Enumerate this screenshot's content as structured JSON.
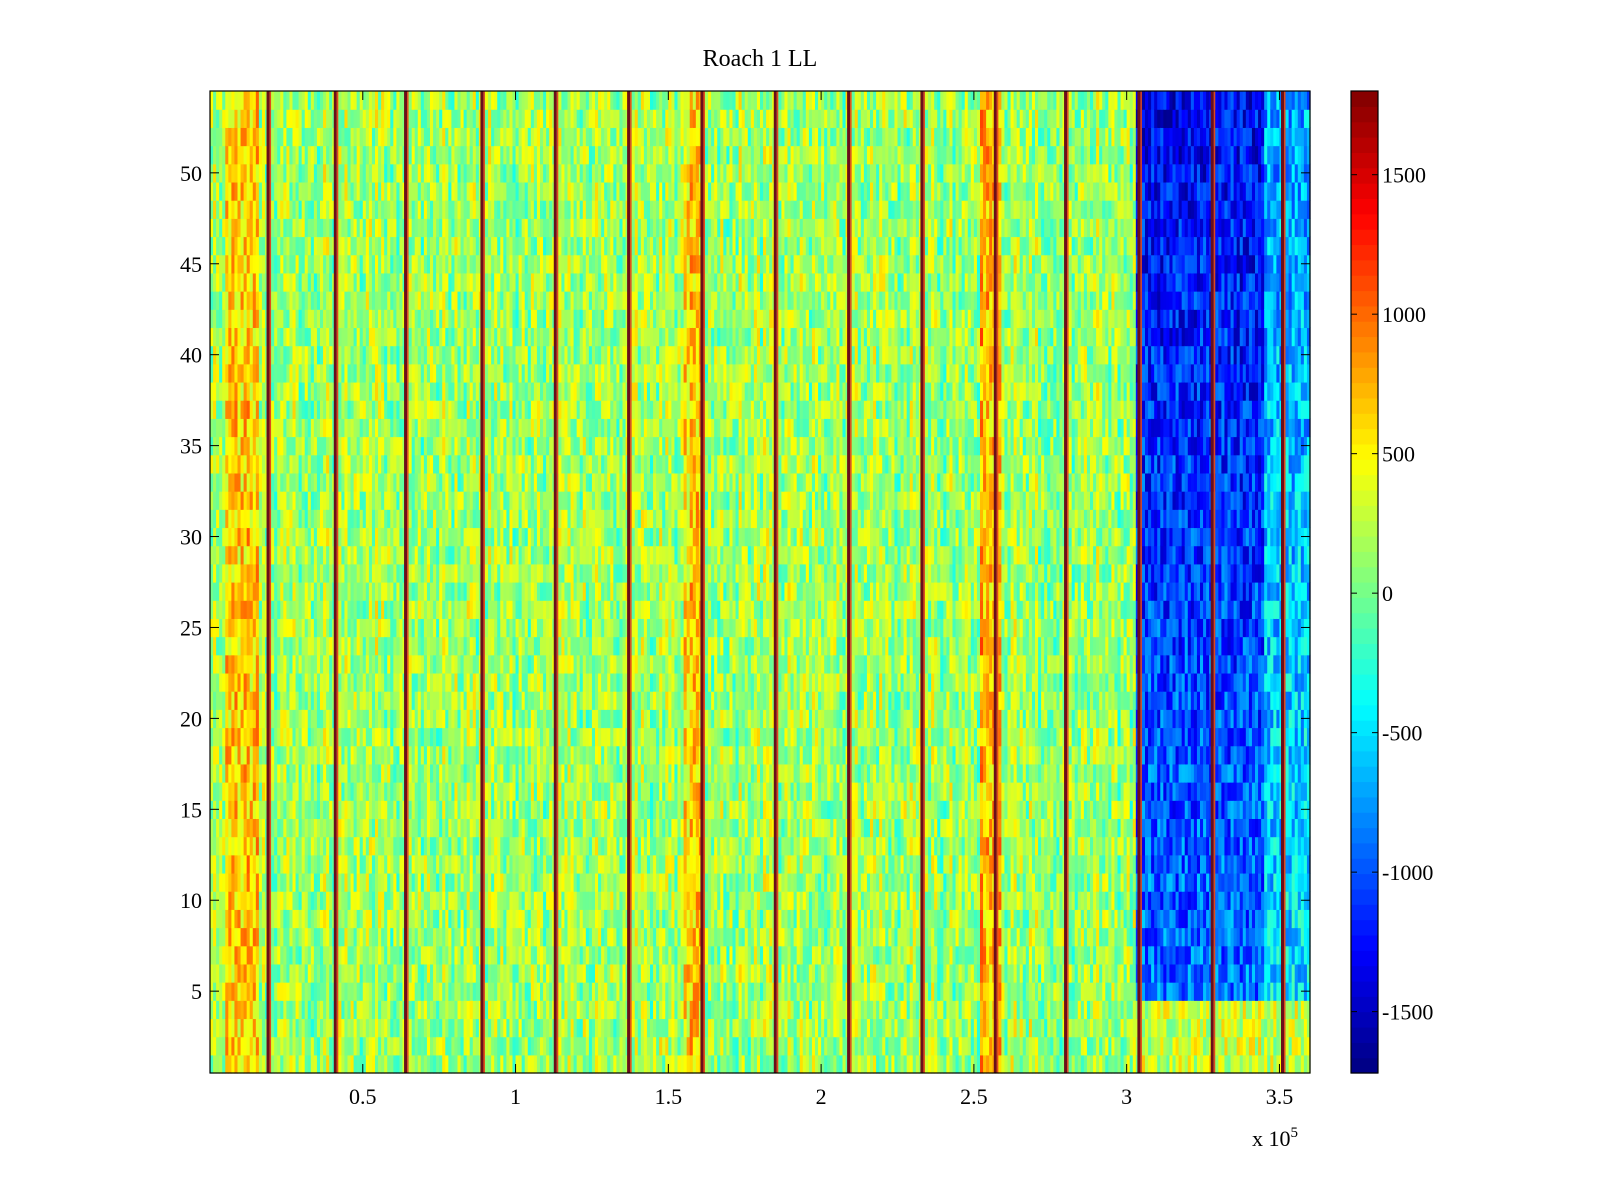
{
  "chart_data": {
    "type": "heatmap",
    "title": "Roach 1 LL",
    "xlabel": "",
    "ylabel": "",
    "colormap": "jet",
    "x_range": [
      0,
      360000
    ],
    "y_range": [
      0.5,
      54.5
    ],
    "x_ticks": [
      {
        "value": 50000,
        "label": "0.5"
      },
      {
        "value": 100000,
        "label": "1"
      },
      {
        "value": 150000,
        "label": "1.5"
      },
      {
        "value": 200000,
        "label": "2"
      },
      {
        "value": 250000,
        "label": "2.5"
      },
      {
        "value": 300000,
        "label": "3"
      },
      {
        "value": 350000,
        "label": "3.5"
      }
    ],
    "x_exponent": {
      "base": "x 10",
      "power": "5"
    },
    "y_ticks": [
      {
        "value": 5,
        "label": "5"
      },
      {
        "value": 10,
        "label": "10"
      },
      {
        "value": 15,
        "label": "15"
      },
      {
        "value": 20,
        "label": "20"
      },
      {
        "value": 25,
        "label": "25"
      },
      {
        "value": 30,
        "label": "30"
      },
      {
        "value": 35,
        "label": "35"
      },
      {
        "value": 40,
        "label": "40"
      },
      {
        "value": 45,
        "label": "45"
      },
      {
        "value": 50,
        "label": "50"
      }
    ],
    "colorbar": {
      "range": [
        -1720,
        1800
      ],
      "ticks": [
        {
          "value": 1500,
          "label": "1500"
        },
        {
          "value": 1000,
          "label": "1000"
        },
        {
          "value": 500,
          "label": "500"
        },
        {
          "value": 0,
          "label": "0"
        },
        {
          "value": -500,
          "label": "-500"
        },
        {
          "value": -1000,
          "label": "-1000"
        },
        {
          "value": -1500,
          "label": "-1500"
        }
      ]
    },
    "field": {
      "baseline": 150,
      "noise_amplitude": 380,
      "dark_stripe_x": [
        19000,
        41000,
        64000,
        89000,
        113000,
        137000,
        161000,
        185000,
        209000,
        233000,
        257000,
        280000,
        304000,
        328000,
        351000
      ],
      "warm_bands": [
        {
          "x_start": 5000,
          "x_end": 16000,
          "value": 650
        },
        {
          "x_start": 155000,
          "x_end": 162000,
          "value": 620
        },
        {
          "x_start": 252000,
          "x_end": 259000,
          "value": 720
        }
      ],
      "cold_region": {
        "x_start": 303000,
        "x_end": 360000,
        "y_start": 4.5,
        "value": -900,
        "top_value": -1300
      }
    }
  }
}
